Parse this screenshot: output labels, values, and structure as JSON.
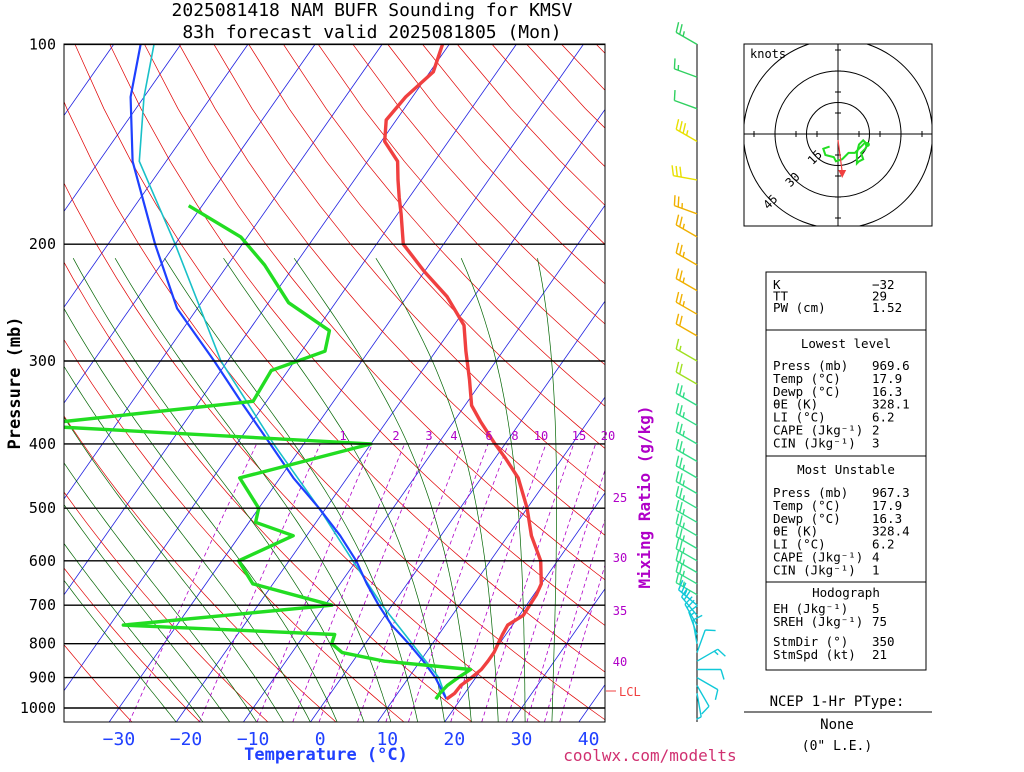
{
  "title_line1": "2025081418 NAM BUFR Sounding for KMSV",
  "title_line2": "83h forecast valid 2025081805 (Mon)",
  "footer_credit": "coolwx.com/modelts",
  "chart_data": {
    "type": "skew-t",
    "ylabel": "Pressure (mb)",
    "xlabel": "Temperature (°C)",
    "y2label": "Mixing Ratio (g/kg)",
    "pressure_ticks": [
      "100",
      "200",
      "300",
      "400",
      "500",
      "600",
      "700",
      "800",
      "900",
      "1000"
    ],
    "temp_ticks": [
      "−30",
      "−20",
      "−10",
      "0",
      "10",
      "20",
      "30",
      "40"
    ],
    "mixing_labels_top": [
      "1",
      "2",
      "3",
      "4",
      "6",
      "8",
      "10",
      "15",
      "20"
    ],
    "mixing_labels_side": [
      "25",
      "30",
      "35",
      "40"
    ],
    "lcl_label": "LCL",
    "temperature_profile": [
      [
        969.6,
        17.9
      ],
      [
        950,
        18.5
      ],
      [
        925,
        18.6
      ],
      [
        900,
        19.4
      ],
      [
        875,
        20.0
      ],
      [
        850,
        20.1
      ],
      [
        825,
        20.1
      ],
      [
        800,
        19.8
      ],
      [
        775,
        19.5
      ],
      [
        750,
        19.3
      ],
      [
        725,
        20.6
      ],
      [
        700,
        20.5
      ],
      [
        675,
        20.4
      ],
      [
        650,
        20.0
      ],
      [
        600,
        17.5
      ],
      [
        550,
        13.5
      ],
      [
        500,
        10.0
      ],
      [
        450,
        5.5
      ],
      [
        420,
        1.5
      ],
      [
        400,
        -1.5
      ],
      [
        370,
        -6.0
      ],
      [
        350,
        -9.0
      ],
      [
        320,
        -12.0
      ],
      [
        290,
        -15.5
      ],
      [
        265,
        -18.5
      ],
      [
        240,
        -24.0
      ],
      [
        220,
        -30.0
      ],
      [
        200,
        -36.0
      ],
      [
        180,
        -39.5
      ],
      [
        170,
        -41.5
      ],
      [
        160,
        -43.5
      ],
      [
        150,
        -45.5
      ],
      [
        140,
        -49.5
      ],
      [
        130,
        -51.5
      ],
      [
        120,
        -51.0
      ],
      [
        110,
        -49.5
      ],
      [
        100,
        -51.0
      ]
    ],
    "dewpoint_profile": [
      [
        969.6,
        16.3
      ],
      [
        950,
        16.3
      ],
      [
        925,
        16.6
      ],
      [
        900,
        17.4
      ],
      [
        875,
        18.4
      ],
      [
        850,
        4.7
      ],
      [
        825,
        -2.5
      ],
      [
        800,
        -5.0
      ],
      [
        775,
        -5.5
      ],
      [
        750,
        -38.0
      ],
      [
        700,
        -9.0
      ],
      [
        650,
        -23.0
      ],
      [
        600,
        -27.5
      ],
      [
        550,
        -22.0
      ],
      [
        525,
        -29.0
      ],
      [
        500,
        -30.0
      ],
      [
        450,
        -36.0
      ],
      [
        400,
        -20.0
      ],
      [
        375,
        -73.0
      ],
      [
        345,
        -42.0
      ],
      [
        310,
        -42.5
      ],
      [
        290,
        -36.5
      ],
      [
        270,
        -38.0
      ],
      [
        245,
        -47.0
      ],
      [
        215,
        -54.5
      ],
      [
        195,
        -61.0
      ],
      [
        175,
        -72.0
      ]
    ],
    "parcel_top": [
      [
        100,
        -96
      ],
      [
        120,
        -92
      ],
      [
        150,
        -85
      ],
      [
        200,
        -73
      ],
      [
        250,
        -63
      ],
      [
        300,
        -52
      ],
      [
        350,
        -43
      ],
      [
        400,
        -35
      ],
      [
        450,
        -28
      ],
      [
        500,
        -21
      ],
      [
        550,
        -15
      ],
      [
        600,
        -10
      ],
      [
        650,
        -6
      ],
      [
        700,
        -2
      ],
      [
        750,
        2
      ],
      [
        800,
        6.5
      ],
      [
        850,
        10.5
      ],
      [
        900,
        14
      ],
      [
        950,
        16.8
      ],
      [
        969.6,
        17.9
      ]
    ],
    "virtual_line": [
      [
        969.6,
        17.9
      ],
      [
        900,
        14.5
      ],
      [
        800,
        7
      ],
      [
        700,
        -1.5
      ],
      [
        600,
        -10.5
      ],
      [
        500,
        -21
      ],
      [
        400,
        -34.5
      ],
      [
        300,
        -51
      ],
      [
        200,
        -70
      ],
      [
        150,
        -84
      ],
      [
        120,
        -90
      ],
      [
        100,
        -94
      ]
    ],
    "stats_top": [
      {
        "label": "K",
        "value": "−32"
      },
      {
        "label": "TT",
        "value": "29"
      },
      {
        "label": "PW (cm)",
        "value": "1.52"
      }
    ],
    "lowest_level_title": "Lowest level",
    "lowest_level": [
      {
        "label": "Press (mb)",
        "value": "969.6"
      },
      {
        "label": "Temp (°C)",
        "value": "17.9"
      },
      {
        "label": "Dewp (°C)",
        "value": "16.3"
      },
      {
        "label": "θE (K)",
        "value": "328.1"
      },
      {
        "label": "LI (°C)",
        "value": "6.2"
      },
      {
        "label": "CAPE (Jkg⁻¹)",
        "value": "2"
      },
      {
        "label": "CIN (Jkg⁻¹)",
        "value": "3"
      }
    ],
    "most_unstable_title": "Most Unstable",
    "most_unstable": [
      {
        "label": "Press (mb)",
        "value": "967.3"
      },
      {
        "label": "Temp (°C)",
        "value": "17.9"
      },
      {
        "label": "Dewp (°C)",
        "value": "16.3"
      },
      {
        "label": "θE (K)",
        "value": "328.4"
      },
      {
        "label": "LI (°C)",
        "value": "6.2"
      },
      {
        "label": "CAPE (Jkg⁻¹)",
        "value": "4"
      },
      {
        "label": "CIN (Jkg⁻¹)",
        "value": "1"
      }
    ],
    "hodograph_title": "Hodograph",
    "hodograph_stats": [
      {
        "label": "EH (Jkg⁻¹)",
        "value": "5"
      },
      {
        "label": "SREH (Jkg⁻¹)",
        "value": "75"
      },
      {
        "label": "StmDir (°)",
        "value": "350"
      },
      {
        "label": "StmSpd (kt)",
        "value": "21"
      }
    ],
    "hodo_units": "knots",
    "hodo_ring_labels": [
      "15",
      "30",
      "45"
    ],
    "hodo_points": [
      [
        -4,
        -6
      ],
      [
        -7,
        -7
      ],
      [
        -6,
        -10
      ],
      [
        -2,
        -11
      ],
      [
        -1,
        -13
      ],
      [
        2,
        -12
      ],
      [
        5,
        -9
      ],
      [
        8,
        -9
      ],
      [
        10,
        -7
      ],
      [
        13,
        -4
      ],
      [
        12,
        -3
      ],
      [
        10,
        -5
      ],
      [
        9,
        -9
      ],
      [
        9,
        -14
      ],
      [
        10,
        -13
      ],
      [
        12,
        -12
      ],
      [
        11,
        -9
      ],
      [
        13,
        -7
      ],
      [
        14,
        -5
      ]
    ],
    "storm_motion": [
      2,
      -20
    ],
    "ptype_title": "NCEP 1-Hr PType:",
    "ptype_value": "None",
    "ptype_sub": "(0\" L.E.)",
    "wind_barbs": [
      {
        "p": 100,
        "dir": 300,
        "spd": 25
      },
      {
        "p": 112,
        "dir": 290,
        "spd": 15
      },
      {
        "p": 125,
        "dir": 290,
        "spd": 10
      },
      {
        "p": 140,
        "dir": 300,
        "spd": 35
      },
      {
        "p": 160,
        "dir": 280,
        "spd": 30
      },
      {
        "p": 180,
        "dir": 290,
        "spd": 25
      },
      {
        "p": 195,
        "dir": 300,
        "spd": 25
      },
      {
        "p": 215,
        "dir": 300,
        "spd": 25
      },
      {
        "p": 235,
        "dir": 300,
        "spd": 25
      },
      {
        "p": 255,
        "dir": 300,
        "spd": 25
      },
      {
        "p": 275,
        "dir": 300,
        "spd": 20
      },
      {
        "p": 300,
        "dir": 300,
        "spd": 15
      },
      {
        "p": 325,
        "dir": 300,
        "spd": 20
      },
      {
        "p": 350,
        "dir": 300,
        "spd": 25
      },
      {
        "p": 375,
        "dir": 300,
        "spd": 25
      },
      {
        "p": 400,
        "dir": 300,
        "spd": 25
      },
      {
        "p": 425,
        "dir": 300,
        "spd": 25
      },
      {
        "p": 450,
        "dir": 300,
        "spd": 25
      },
      {
        "p": 475,
        "dir": 300,
        "spd": 25
      },
      {
        "p": 500,
        "dir": 300,
        "spd": 25
      },
      {
        "p": 525,
        "dir": 300,
        "spd": 25
      },
      {
        "p": 550,
        "dir": 300,
        "spd": 25
      },
      {
        "p": 575,
        "dir": 300,
        "spd": 25
      },
      {
        "p": 600,
        "dir": 300,
        "spd": 25
      },
      {
        "p": 625,
        "dir": 300,
        "spd": 25
      },
      {
        "p": 650,
        "dir": 300,
        "spd": 25
      },
      {
        "p": 675,
        "dir": 300,
        "spd": 25
      },
      {
        "p": 700,
        "dir": 310,
        "spd": 25
      },
      {
        "p": 725,
        "dir": 320,
        "spd": 20
      },
      {
        "p": 750,
        "dir": 330,
        "spd": 20
      },
      {
        "p": 775,
        "dir": 340,
        "spd": 15
      },
      {
        "p": 800,
        "dir": 350,
        "spd": 10
      },
      {
        "p": 825,
        "dir": 20,
        "spd": 10
      },
      {
        "p": 850,
        "dir": 60,
        "spd": 15
      },
      {
        "p": 875,
        "dir": 90,
        "spd": 10
      },
      {
        "p": 900,
        "dir": 120,
        "spd": 10
      },
      {
        "p": 925,
        "dir": 150,
        "spd": 10
      },
      {
        "p": 950,
        "dir": 170,
        "spd": 5
      }
    ],
    "colors": {
      "temperature": "#f04040",
      "dewpoint": "#22dd22",
      "parcel": "#1e40ff",
      "virtual": "#19c0c8",
      "mixing": "#b000c8",
      "dry": "#e00000",
      "moist": "#006400",
      "isotherm": "#2020e0"
    }
  }
}
